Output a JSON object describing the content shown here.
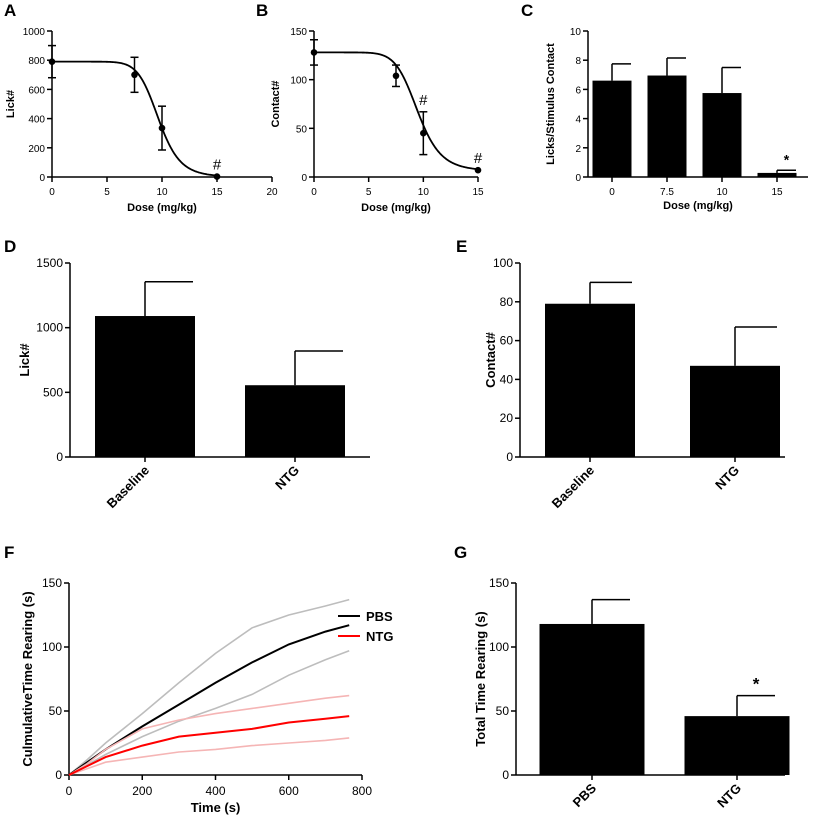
{
  "chart_data": [
    {
      "panel": "A",
      "type": "line",
      "xlabel": "Dose (mg/kg)",
      "ylabel": "Lick#",
      "xlim": [
        0,
        20
      ],
      "ylim": [
        0,
        1000
      ],
      "xticks": [
        "0",
        "5",
        "10",
        "15",
        "20"
      ],
      "yticks": [
        "0",
        "200",
        "400",
        "600",
        "800",
        "1000"
      ],
      "points": [
        {
          "x": 0,
          "y": 790,
          "err": 110,
          "mark": ""
        },
        {
          "x": 7.5,
          "y": 700,
          "err": 120,
          "mark": ""
        },
        {
          "x": 10,
          "y": 335,
          "err": 150,
          "mark": ""
        },
        {
          "x": 15,
          "y": 3,
          "err": 0,
          "mark": "#"
        }
      ],
      "fit": {
        "top": 790,
        "bottom": 0,
        "ec50": 9.7,
        "hill": 10
      }
    },
    {
      "panel": "B",
      "type": "line",
      "xlabel": "Dose (mg/kg)",
      "ylabel": "Contact#",
      "xlim": [
        0,
        15
      ],
      "ylim": [
        0,
        150
      ],
      "xticks": [
        "0",
        "5",
        "10",
        "15"
      ],
      "yticks": [
        "0",
        "50",
        "100",
        "150"
      ],
      "points": [
        {
          "x": 0,
          "y": 128,
          "err": 13,
          "mark": ""
        },
        {
          "x": 7.5,
          "y": 104,
          "err": 11,
          "mark": ""
        },
        {
          "x": 10,
          "y": 45,
          "err": 22,
          "mark": "#"
        },
        {
          "x": 15,
          "y": 7,
          "err": 0,
          "mark": "#"
        }
      ],
      "fit": {
        "top": 128,
        "bottom": 6,
        "ec50": 9.5,
        "hill": 9
      }
    },
    {
      "panel": "C",
      "type": "bar",
      "xlabel": "Dose (mg/kg)",
      "ylabel": "Licks/Stimulus Contact",
      "ylim": [
        0,
        10
      ],
      "yticks": [
        "0",
        "2",
        "4",
        "6",
        "8",
        "10"
      ],
      "categories": [
        "0",
        "7.5",
        "10",
        "15"
      ],
      "values": [
        6.6,
        6.95,
        5.75,
        0.28
      ],
      "errors": [
        1.15,
        1.2,
        1.75,
        0.18
      ],
      "marks": [
        "",
        "",
        "",
        "*"
      ]
    },
    {
      "panel": "D",
      "type": "bar",
      "ylabel": "Lick#",
      "ylim": [
        0,
        1500
      ],
      "yticks": [
        "0",
        "500",
        "1000",
        "1500"
      ],
      "categories": [
        "Baseline",
        "NTG"
      ],
      "values": [
        1090,
        555
      ],
      "errors": [
        265,
        265
      ],
      "marks": [
        "",
        ""
      ]
    },
    {
      "panel": "E",
      "type": "bar",
      "ylabel": "Contact#",
      "ylim": [
        0,
        100
      ],
      "yticks": [
        "0",
        "20",
        "40",
        "60",
        "80",
        "100"
      ],
      "categories": [
        "Baseline",
        "NTG"
      ],
      "values": [
        79,
        47
      ],
      "errors": [
        11,
        20
      ],
      "marks": [
        "",
        ""
      ]
    },
    {
      "panel": "F",
      "type": "line",
      "xlabel": "Time (s)",
      "ylabel": "CulmulativeTime Rearing (s)",
      "xlim": [
        0,
        800
      ],
      "ylim": [
        0,
        150
      ],
      "xticks": [
        "0",
        "200",
        "400",
        "600",
        "800"
      ],
      "yticks": [
        "0",
        "50",
        "100",
        "150"
      ],
      "series": [
        {
          "name": "PBS",
          "color": "#000000",
          "band": "#bdbdbd",
          "x": [
            0,
            50,
            100,
            200,
            300,
            400,
            500,
            600,
            700,
            765
          ],
          "mean": [
            0,
            10,
            20,
            38,
            55,
            72,
            88,
            102,
            112,
            117
          ],
          "upper": [
            0,
            12,
            25,
            48,
            72,
            95,
            115,
            125,
            132,
            137
          ],
          "lower": [
            0,
            8,
            16,
            30,
            42,
            52,
            63,
            78,
            90,
            97
          ]
        },
        {
          "name": "NTG",
          "color": "#ff0000",
          "band": "#f5b5b5",
          "x": [
            0,
            50,
            100,
            200,
            300,
            400,
            500,
            600,
            700,
            765
          ],
          "mean": [
            0,
            7,
            14,
            23,
            30,
            33,
            36,
            41,
            44,
            46
          ],
          "upper": [
            0,
            9,
            20,
            36,
            43,
            48,
            52,
            56,
            60,
            62
          ],
          "lower": [
            0,
            5,
            10,
            14,
            18,
            20,
            23,
            25,
            27,
            29
          ]
        }
      ]
    },
    {
      "panel": "G",
      "type": "bar",
      "ylabel": "Total Time Rearing (s)",
      "ylim": [
        0,
        150
      ],
      "yticks": [
        "0",
        "50",
        "100",
        "150"
      ],
      "categories": [
        "PBS",
        "NTG"
      ],
      "values": [
        118,
        46
      ],
      "errors": [
        19,
        16
      ],
      "marks": [
        "",
        "*"
      ]
    }
  ]
}
